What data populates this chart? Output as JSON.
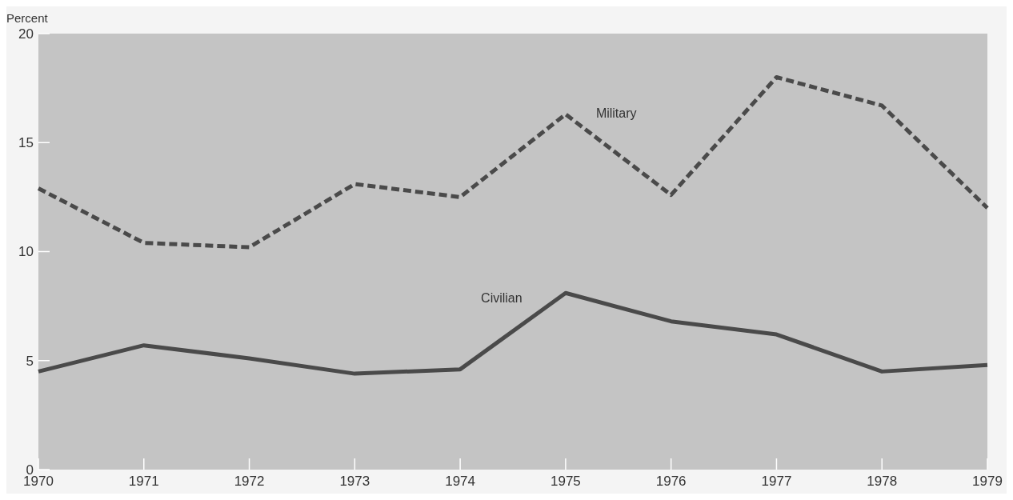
{
  "chart_data": {
    "type": "line",
    "ylabel": "Percent",
    "x": [
      1970,
      1971,
      1972,
      1973,
      1974,
      1975,
      1976,
      1977,
      1978,
      1979
    ],
    "series": [
      {
        "name": "Military",
        "color": "#4a4a4a",
        "line_style": "dashed",
        "values": [
          12.9,
          10.4,
          10.2,
          13.1,
          12.5,
          16.3,
          12.6,
          18.0,
          16.7,
          12.0
        ]
      },
      {
        "name": "Civilian",
        "color": "#4a4a4a",
        "line_style": "solid",
        "values": [
          4.5,
          5.7,
          5.1,
          4.4,
          4.6,
          8.1,
          6.8,
          6.2,
          4.5,
          4.8
        ]
      }
    ],
    "xlim": [
      1970,
      1979
    ],
    "xticks": [
      1970,
      1971,
      1972,
      1973,
      1974,
      1975,
      1976,
      1977,
      1978,
      1979
    ],
    "ylim": [
      0,
      20
    ],
    "yticks": [
      0,
      5,
      10,
      15,
      20
    ],
    "grid": false
  }
}
